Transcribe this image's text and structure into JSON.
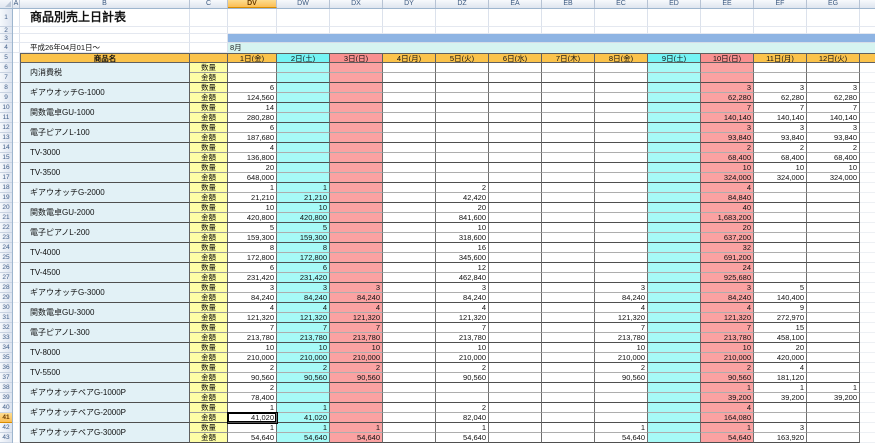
{
  "sheet": {
    "title": "商品別売上日計表",
    "date_range": "平成26年04月01日～",
    "month_label": "8月",
    "product_header": "商品名",
    "qty_label": "数量",
    "amount_label": "金額",
    "column_letters": [
      "A",
      "B",
      "C",
      "DV",
      "DW",
      "DX",
      "DY",
      "DZ",
      "EA",
      "EB",
      "EC",
      "ED",
      "EE",
      "EF",
      "EG"
    ],
    "selected_column": "DV",
    "selected_row": "41",
    "rows_visible": 43,
    "active_cell": {
      "product_index": 17,
      "row": "amount",
      "day_index": 0,
      "value": "41,020"
    },
    "day_headers": [
      {
        "label": "1日(金)",
        "type": "weekday"
      },
      {
        "label": "2日(土)",
        "type": "saturday"
      },
      {
        "label": "3日(日)",
        "type": "sunday"
      },
      {
        "label": "4日(月)",
        "type": "weekday"
      },
      {
        "label": "5日(火)",
        "type": "weekday"
      },
      {
        "label": "6日(水)",
        "type": "weekday"
      },
      {
        "label": "7日(木)",
        "type": "weekday"
      },
      {
        "label": "8日(金)",
        "type": "weekday"
      },
      {
        "label": "9日(土)",
        "type": "saturday"
      },
      {
        "label": "10日(日)",
        "type": "sunday"
      },
      {
        "label": "11日(月)",
        "type": "weekday"
      },
      {
        "label": "12日(火)",
        "type": "weekday"
      }
    ],
    "products": [
      {
        "name": "内消費税",
        "qty": [
          "",
          "",
          "",
          "",
          "",
          "",
          "",
          "",
          "",
          "",
          "",
          ""
        ],
        "amount": [
          "",
          "",
          "",
          "",
          "",
          "",
          "",
          "",
          "",
          "",
          "",
          ""
        ]
      },
      {
        "name": "ギアウオッチG-1000",
        "qty": [
          "6",
          "",
          "",
          "",
          "",
          "",
          "",
          "",
          "",
          "3",
          "3",
          "3"
        ],
        "amount": [
          "124,560",
          "",
          "",
          "",
          "",
          "",
          "",
          "",
          "",
          "62,280",
          "62,280",
          "62,280"
        ]
      },
      {
        "name": "関数電卓GU-1000",
        "qty": [
          "14",
          "",
          "",
          "",
          "",
          "",
          "",
          "",
          "",
          "7",
          "7",
          "7"
        ],
        "amount": [
          "280,280",
          "",
          "",
          "",
          "",
          "",
          "",
          "",
          "",
          "140,140",
          "140,140",
          "140,140"
        ]
      },
      {
        "name": "電子ピアノL-100",
        "qty": [
          "6",
          "",
          "",
          "",
          "",
          "",
          "",
          "",
          "",
          "3",
          "3",
          "3"
        ],
        "amount": [
          "187,680",
          "",
          "",
          "",
          "",
          "",
          "",
          "",
          "",
          "93,840",
          "93,840",
          "93,840"
        ]
      },
      {
        "name": "TV-3000",
        "qty": [
          "4",
          "",
          "",
          "",
          "",
          "",
          "",
          "",
          "",
          "2",
          "2",
          "2"
        ],
        "amount": [
          "136,800",
          "",
          "",
          "",
          "",
          "",
          "",
          "",
          "",
          "68,400",
          "68,400",
          "68,400"
        ]
      },
      {
        "name": "TV-3500",
        "qty": [
          "20",
          "",
          "",
          "",
          "",
          "",
          "",
          "",
          "",
          "10",
          "10",
          "10"
        ],
        "amount": [
          "648,000",
          "",
          "",
          "",
          "",
          "",
          "",
          "",
          "",
          "324,000",
          "324,000",
          "324,000"
        ]
      },
      {
        "name": "ギアウオッチG-2000",
        "qty": [
          "1",
          "1",
          "",
          "",
          "2",
          "",
          "",
          "",
          "",
          "4",
          "",
          ""
        ],
        "amount": [
          "21,210",
          "21,210",
          "",
          "",
          "42,420",
          "",
          "",
          "",
          "",
          "84,840",
          "",
          ""
        ]
      },
      {
        "name": "関数電卓GU-2000",
        "qty": [
          "10",
          "10",
          "",
          "",
          "20",
          "",
          "",
          "",
          "",
          "40",
          "",
          ""
        ],
        "amount": [
          "420,800",
          "420,800",
          "",
          "",
          "841,600",
          "",
          "",
          "",
          "",
          "1,683,200",
          "",
          ""
        ]
      },
      {
        "name": "電子ピアノL-200",
        "qty": [
          "5",
          "5",
          "",
          "",
          "10",
          "",
          "",
          "",
          "",
          "20",
          "",
          ""
        ],
        "amount": [
          "159,300",
          "159,300",
          "",
          "",
          "318,600",
          "",
          "",
          "",
          "",
          "637,200",
          "",
          ""
        ]
      },
      {
        "name": "TV-4000",
        "qty": [
          "8",
          "8",
          "",
          "",
          "16",
          "",
          "",
          "",
          "",
          "32",
          "",
          ""
        ],
        "amount": [
          "172,800",
          "172,800",
          "",
          "",
          "345,600",
          "",
          "",
          "",
          "",
          "691,200",
          "",
          ""
        ]
      },
      {
        "name": "TV-4500",
        "qty": [
          "6",
          "6",
          "",
          "",
          "12",
          "",
          "",
          "",
          "",
          "24",
          "",
          ""
        ],
        "amount": [
          "231,420",
          "231,420",
          "",
          "",
          "462,840",
          "",
          "",
          "",
          "",
          "925,680",
          "",
          ""
        ]
      },
      {
        "name": "ギアウオッチG-3000",
        "qty": [
          "3",
          "3",
          "3",
          "",
          "3",
          "",
          "",
          "3",
          "",
          "3",
          "5",
          ""
        ],
        "amount": [
          "84,240",
          "84,240",
          "84,240",
          "",
          "84,240",
          "",
          "",
          "84,240",
          "",
          "84,240",
          "140,400",
          ""
        ]
      },
      {
        "name": "関数電卓GU-3000",
        "qty": [
          "4",
          "4",
          "4",
          "",
          "4",
          "",
          "",
          "4",
          "",
          "4",
          "9",
          ""
        ],
        "amount": [
          "121,320",
          "121,320",
          "121,320",
          "",
          "121,320",
          "",
          "",
          "121,320",
          "",
          "121,320",
          "272,970",
          ""
        ]
      },
      {
        "name": "電子ピアノL-300",
        "qty": [
          "7",
          "7",
          "7",
          "",
          "7",
          "",
          "",
          "7",
          "",
          "7",
          "15",
          ""
        ],
        "amount": [
          "213,780",
          "213,780",
          "213,780",
          "",
          "213,780",
          "",
          "",
          "213,780",
          "",
          "213,780",
          "458,100",
          ""
        ]
      },
      {
        "name": "TV-8000",
        "qty": [
          "10",
          "10",
          "10",
          "",
          "10",
          "",
          "",
          "10",
          "",
          "10",
          "20",
          ""
        ],
        "amount": [
          "210,000",
          "210,000",
          "210,000",
          "",
          "210,000",
          "",
          "",
          "210,000",
          "",
          "210,000",
          "420,000",
          ""
        ]
      },
      {
        "name": "TV-5500",
        "qty": [
          "2",
          "2",
          "2",
          "",
          "2",
          "",
          "",
          "2",
          "",
          "2",
          "4",
          ""
        ],
        "amount": [
          "90,560",
          "90,560",
          "90,560",
          "",
          "90,560",
          "",
          "",
          "90,560",
          "",
          "90,560",
          "181,120",
          ""
        ]
      },
      {
        "name": "ギアウオッチペアG-1000P",
        "qty": [
          "2",
          "",
          "",
          "",
          "",
          "",
          "",
          "",
          "",
          "1",
          "1",
          "1"
        ],
        "amount": [
          "78,400",
          "",
          "",
          "",
          "",
          "",
          "",
          "",
          "",
          "39,200",
          "39,200",
          "39,200"
        ]
      },
      {
        "name": "ギアウオッチペアG-2000P",
        "qty": [
          "1",
          "1",
          "",
          "",
          "2",
          "",
          "",
          "",
          "",
          "4",
          "",
          ""
        ],
        "amount": [
          "41,020",
          "41,020",
          "",
          "",
          "82,040",
          "",
          "",
          "",
          "",
          "164,080",
          "",
          ""
        ]
      },
      {
        "name": "ギアウオッチペアG-3000P",
        "qty": [
          "1",
          "1",
          "1",
          "",
          "1",
          "",
          "",
          "1",
          "",
          "1",
          "3",
          ""
        ],
        "amount": [
          "54,640",
          "54,640",
          "54,640",
          "",
          "54,640",
          "",
          "",
          "54,640",
          "",
          "54,640",
          "163,920",
          ""
        ]
      }
    ],
    "colors": {
      "weekday_header": "#FBC34B",
      "saturday_header": "#74F4F4",
      "sunday_header": "#F9908F",
      "saturday_cell": "#A6FAF7",
      "sunday_cell": "#FBA2A2",
      "label_fill": "#FEFEA6",
      "product_fill": "#E2F1F6",
      "band_blue": "#8EB4E3",
      "band_cyan": "#D6F4F0",
      "selection_header": "#FBBE54"
    }
  }
}
